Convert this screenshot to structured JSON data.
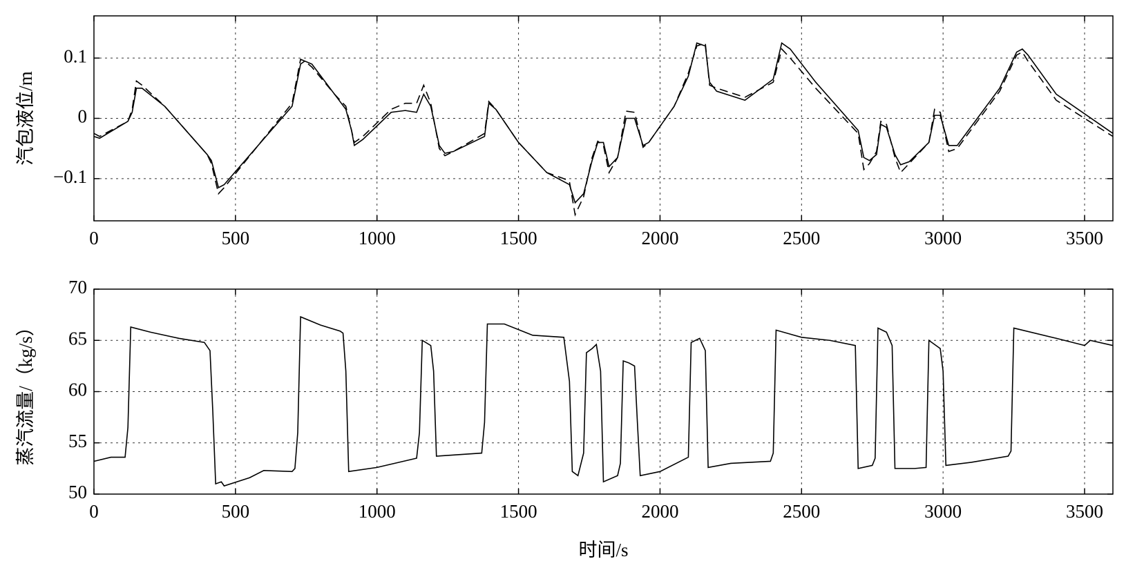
{
  "chart_data": [
    {
      "type": "line",
      "ylabel": "汽包液位/m",
      "x": [
        0,
        20,
        120,
        135,
        150,
        170,
        250,
        400,
        415,
        440,
        460,
        700,
        730,
        745,
        770,
        850,
        890,
        910,
        920,
        950,
        1050,
        1100,
        1140,
        1165,
        1190,
        1220,
        1240,
        1270,
        1380,
        1395,
        1420,
        1500,
        1600,
        1660,
        1680,
        1700,
        1730,
        1760,
        1780,
        1800,
        1820,
        1850,
        1880,
        1910,
        1940,
        1960,
        2050,
        2100,
        2130,
        2160,
        2175,
        2200,
        2300,
        2400,
        2430,
        2460,
        2550,
        2700,
        2720,
        2740,
        2765,
        2780,
        2800,
        2830,
        2850,
        2880,
        2950,
        2970,
        2990,
        3020,
        3050,
        3200,
        3260,
        3280,
        3300,
        3400,
        3600
      ],
      "series": [
        {
          "color": "#000000",
          "dash": "solid",
          "values": [
            -0.03,
            -0.033,
            -0.005,
            0.01,
            0.05,
            0.05,
            0.02,
            -0.06,
            -0.07,
            -0.115,
            -0.11,
            0.02,
            0.09,
            0.095,
            0.09,
            0.04,
            0.015,
            -0.02,
            -0.045,
            -0.035,
            0.01,
            0.013,
            0.01,
            0.04,
            0.02,
            -0.045,
            -0.058,
            -0.055,
            -0.03,
            0.025,
            0.015,
            -0.04,
            -0.09,
            -0.105,
            -0.11,
            -0.14,
            -0.125,
            -0.07,
            -0.04,
            -0.04,
            -0.08,
            -0.065,
            0,
            0,
            -0.045,
            -0.04,
            0.02,
            0.07,
            0.125,
            0.12,
            0.06,
            0.045,
            0.03,
            0.065,
            0.125,
            0.115,
            0.06,
            -0.02,
            -0.065,
            -0.07,
            -0.06,
            -0.01,
            -0.015,
            -0.06,
            -0.077,
            -0.072,
            -0.04,
            0.005,
            0.005,
            -0.045,
            -0.045,
            0.05,
            0.11,
            0.115,
            0.105,
            0.04,
            -0.025
          ]
        },
        {
          "color": "#000000",
          "dash": "dashed",
          "values": [
            -0.025,
            -0.03,
            -0.005,
            0.015,
            0.062,
            0.055,
            0.02,
            -0.06,
            -0.075,
            -0.125,
            -0.115,
            0.025,
            0.098,
            0.095,
            0.085,
            0.04,
            0.02,
            -0.02,
            -0.04,
            -0.03,
            0.015,
            0.025,
            0.025,
            0.055,
            0.025,
            -0.05,
            -0.062,
            -0.055,
            -0.025,
            0.028,
            0.015,
            -0.04,
            -0.09,
            -0.1,
            -0.105,
            -0.16,
            -0.13,
            -0.065,
            -0.038,
            -0.045,
            -0.09,
            -0.065,
            0.012,
            0.01,
            -0.048,
            -0.04,
            0.02,
            0.075,
            0.12,
            0.125,
            0.055,
            0.05,
            0.035,
            0.06,
            0.115,
            0.1,
            0.05,
            -0.025,
            -0.085,
            -0.075,
            -0.055,
            -0.005,
            -0.01,
            -0.065,
            -0.09,
            -0.075,
            -0.04,
            0.015,
            0.01,
            -0.055,
            -0.05,
            0.045,
            0.105,
            0.11,
            0.095,
            0.03,
            -0.03
          ]
        }
      ],
      "xlim": [
        0,
        3600
      ],
      "xticks": [
        0,
        500,
        1000,
        1500,
        2000,
        2500,
        3000,
        3500
      ],
      "ylim": [
        -0.17,
        0.17
      ],
      "yticks": [
        {
          "value": -0.1,
          "label": "−0.1"
        },
        0,
        0.1
      ],
      "grid": true
    },
    {
      "type": "line",
      "ylabel": "蒸汽流量/（kg/s）",
      "xlabel": "时间/s",
      "x": [
        0,
        60,
        110,
        120,
        130,
        200,
        300,
        390,
        410,
        420,
        430,
        450,
        460,
        550,
        600,
        700,
        710,
        720,
        730,
        800,
        870,
        880,
        890,
        900,
        1000,
        1140,
        1150,
        1160,
        1190,
        1200,
        1210,
        1370,
        1380,
        1390,
        1450,
        1550,
        1660,
        1680,
        1690,
        1710,
        1730,
        1740,
        1760,
        1775,
        1790,
        1800,
        1850,
        1860,
        1870,
        1890,
        1910,
        1920,
        1930,
        2000,
        2100,
        2110,
        2140,
        2160,
        2170,
        2250,
        2390,
        2400,
        2410,
        2500,
        2600,
        2690,
        2700,
        2750,
        2760,
        2770,
        2800,
        2820,
        2830,
        2900,
        2940,
        2950,
        2980,
        2990,
        3000,
        3010,
        3100,
        3230,
        3240,
        3250,
        3400,
        3500,
        3520,
        3600
      ],
      "series": [
        {
          "color": "#000000",
          "dash": "solid",
          "values": [
            53.2,
            53.6,
            53.6,
            56.5,
            66.3,
            65.8,
            65.2,
            64.8,
            64.0,
            58,
            51.0,
            51.2,
            50.8,
            51.6,
            52.3,
            52.2,
            52.5,
            56,
            67.3,
            66.5,
            65.9,
            65.7,
            62,
            52.2,
            52.6,
            53.5,
            56,
            65,
            64.5,
            62,
            53.7,
            54,
            57,
            66.6,
            66.6,
            65.5,
            65.3,
            61,
            52.2,
            51.8,
            54,
            63.8,
            64.2,
            64.6,
            62,
            51.2,
            51.8,
            53,
            63,
            62.8,
            62.5,
            57,
            51.8,
            52.2,
            53.6,
            64.8,
            65.2,
            64,
            52.6,
            53,
            53.2,
            54,
            66,
            65.3,
            65,
            64.5,
            52.5,
            52.8,
            53.5,
            66.2,
            65.8,
            64.5,
            52.5,
            52.5,
            52.6,
            65,
            64.4,
            64.2,
            62,
            52.8,
            53.1,
            53.7,
            54.2,
            66.2,
            65.2,
            64.5,
            65,
            64.5
          ]
        }
      ],
      "xlim": [
        0,
        3600
      ],
      "xticks": [
        0,
        500,
        1000,
        1500,
        2000,
        2500,
        3000,
        3500
      ],
      "ylim": [
        50,
        70
      ],
      "yticks": [
        50,
        55,
        60,
        65,
        70
      ],
      "grid": true
    }
  ]
}
